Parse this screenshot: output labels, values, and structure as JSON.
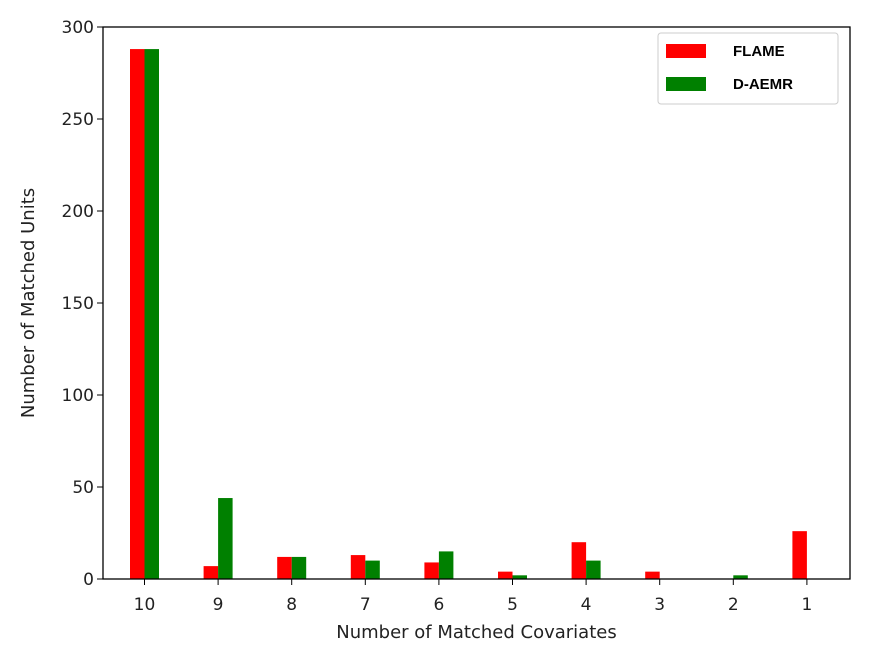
{
  "chart_data": {
    "type": "bar",
    "categories": [
      "10",
      "9",
      "8",
      "7",
      "6",
      "5",
      "4",
      "3",
      "2",
      "1"
    ],
    "series": [
      {
        "name": "FLAME",
        "color": "#ff0000",
        "values": [
          288,
          7,
          12,
          13,
          9,
          4,
          20,
          4,
          0,
          26
        ]
      },
      {
        "name": "D-AEMR",
        "color": "#008000",
        "values": [
          288,
          44,
          12,
          10,
          15,
          2,
          10,
          0,
          2,
          0
        ]
      }
    ],
    "title": "",
    "xlabel": "Number of Matched Covariates",
    "ylabel": "Number of Matched Units",
    "ylim": [
      0,
      300
    ],
    "yticks": [
      "0",
      "50",
      "100",
      "150",
      "200",
      "250",
      "300"
    ],
    "grid": false,
    "legend_position": "top-right"
  }
}
